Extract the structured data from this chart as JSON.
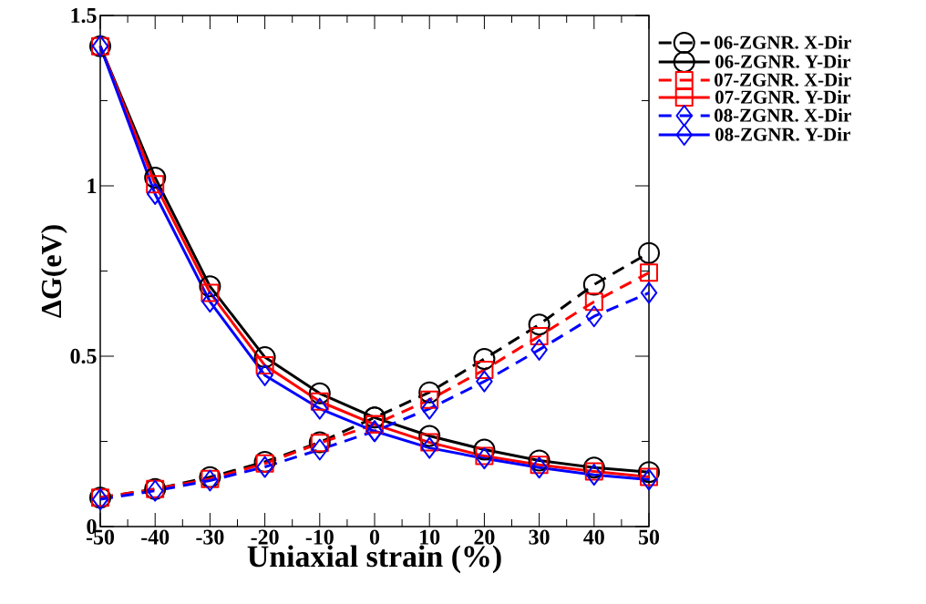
{
  "chart_data": {
    "type": "line",
    "xlabel": "Uniaxial strain (%)",
    "ylabel": "ΔG(eV)",
    "x": [
      -50,
      -40,
      -30,
      -20,
      -10,
      0,
      10,
      20,
      30,
      40,
      50
    ],
    "xlim": [
      -50,
      50
    ],
    "xticks": [
      -50,
      -40,
      -30,
      -20,
      -10,
      0,
      10,
      20,
      30,
      40,
      50
    ],
    "ylim": [
      0,
      1.5
    ],
    "yticks": [
      0,
      0.5,
      1,
      1.5
    ],
    "legend": "top right",
    "series": [
      {
        "name": "06-ZGNR. X-Dir",
        "color": "#000000",
        "marker": "circle",
        "line_style": "dashed",
        "values": [
          0.085,
          0.11,
          0.145,
          0.19,
          0.247,
          0.32,
          0.394,
          0.492,
          0.593,
          0.71,
          0.803
        ]
      },
      {
        "name": "06-ZGNR. Y-Dir",
        "color": "#000000",
        "marker": "circle",
        "line_style": "solid",
        "values": [
          1.41,
          1.024,
          0.705,
          0.497,
          0.391,
          0.32,
          0.266,
          0.226,
          0.194,
          0.173,
          0.16
        ]
      },
      {
        "name": "07-ZGNR. X-Dir",
        "color": "#ff0000",
        "marker": "square",
        "line_style": "dashed",
        "values": [
          0.085,
          0.11,
          0.14,
          0.185,
          0.245,
          0.3,
          0.372,
          0.46,
          0.559,
          0.66,
          0.745
        ]
      },
      {
        "name": "07-ZGNR. Y-Dir",
        "color": "#ff0000",
        "marker": "square",
        "line_style": "solid",
        "values": [
          1.41,
          1.005,
          0.686,
          0.473,
          0.367,
          0.3,
          0.247,
          0.207,
          0.181,
          0.162,
          0.146
        ]
      },
      {
        "name": "08-ZGNR. X-Dir",
        "color": "#0000ff",
        "marker": "diamond",
        "line_style": "dashed",
        "values": [
          0.08,
          0.105,
          0.135,
          0.175,
          0.226,
          0.28,
          0.346,
          0.426,
          0.519,
          0.617,
          0.686
        ]
      },
      {
        "name": "08-ZGNR. Y-Dir",
        "color": "#0000ff",
        "marker": "diamond",
        "line_style": "solid",
        "values": [
          1.41,
          0.976,
          0.66,
          0.444,
          0.346,
          0.28,
          0.231,
          0.2,
          0.173,
          0.152,
          0.138
        ]
      }
    ]
  }
}
